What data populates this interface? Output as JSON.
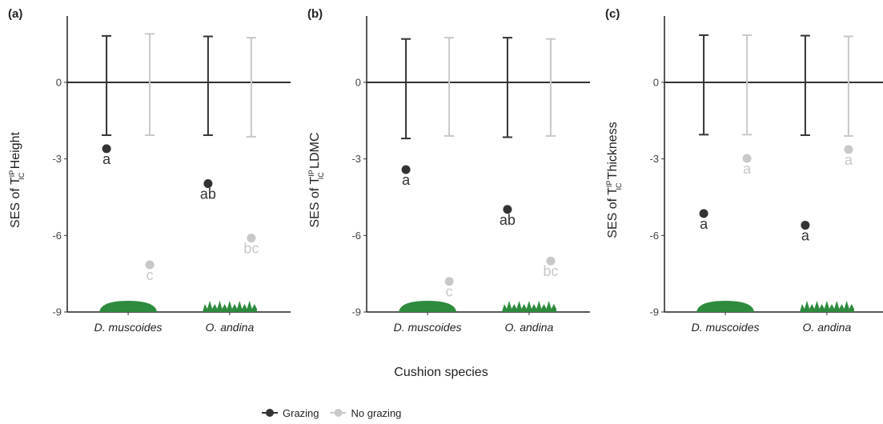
{
  "xlabel": "Cushion species",
  "chart_data": [
    {
      "type": "point",
      "tag": "(a)",
      "ylabel": {
        "prefix": "SES of T",
        "sup": "IP",
        "sub": "IC",
        "suffix": " Height"
      },
      "categories": [
        "D. muscoides",
        "O. andina"
      ],
      "ylim": [
        -9,
        2.6
      ],
      "yticks": [
        -9,
        -6,
        -3,
        0
      ],
      "series": [
        {
          "name": "Grazing",
          "color": "#333333",
          "values": [
            -2.6,
            -3.97
          ],
          "letters": [
            "a",
            "ab"
          ],
          "interval_low": [
            -2.07,
            -2.07
          ],
          "interval_high": [
            1.82,
            1.8
          ]
        },
        {
          "name": "No grazing",
          "color": "#c8c8c8",
          "values": [
            -7.15,
            -6.1
          ],
          "letters": [
            "c",
            "bc"
          ],
          "interval_low": [
            -2.07,
            -2.13
          ],
          "interval_high": [
            1.9,
            1.75
          ]
        }
      ]
    },
    {
      "type": "point",
      "tag": "(b)",
      "ylabel": {
        "prefix": "SES of T",
        "sup": "IP",
        "sub": "IC",
        "suffix": " LDMC"
      },
      "categories": [
        "D. muscoides",
        "O. andina"
      ],
      "ylim": [
        -9,
        2.6
      ],
      "yticks": [
        -9,
        -6,
        -3,
        0
      ],
      "series": [
        {
          "name": "Grazing",
          "color": "#333333",
          "values": [
            -3.42,
            -4.98
          ],
          "letters": [
            "a",
            "ab"
          ],
          "interval_low": [
            -2.2,
            -2.15
          ],
          "interval_high": [
            1.7,
            1.75
          ]
        },
        {
          "name": "No grazing",
          "color": "#c8c8c8",
          "values": [
            -7.8,
            -7.0
          ],
          "letters": [
            "c",
            "bc"
          ],
          "interval_low": [
            -2.1,
            -2.1
          ],
          "interval_high": [
            1.75,
            1.7
          ]
        }
      ]
    },
    {
      "type": "point",
      "tag": "(c)",
      "ylabel": {
        "prefix": "SES of T",
        "sup": "IP",
        "sub": "IC",
        "suffix": " Thickness"
      },
      "categories": [
        "D. muscoides",
        "O. andina"
      ],
      "ylim": [
        -9,
        2.6
      ],
      "yticks": [
        -9,
        -6,
        -3,
        0
      ],
      "series": [
        {
          "name": "Grazing",
          "color": "#333333",
          "values": [
            -5.14,
            -5.6
          ],
          "letters": [
            "a",
            "a"
          ],
          "interval_low": [
            -2.05,
            -2.07
          ],
          "interval_high": [
            1.85,
            1.83
          ]
        },
        {
          "name": "No grazing",
          "color": "#c8c8c8",
          "values": [
            -2.98,
            -2.63
          ],
          "letters": [
            "a",
            "a"
          ],
          "interval_low": [
            -2.05,
            -2.1
          ],
          "interval_high": [
            1.85,
            1.8
          ]
        }
      ]
    }
  ]
}
